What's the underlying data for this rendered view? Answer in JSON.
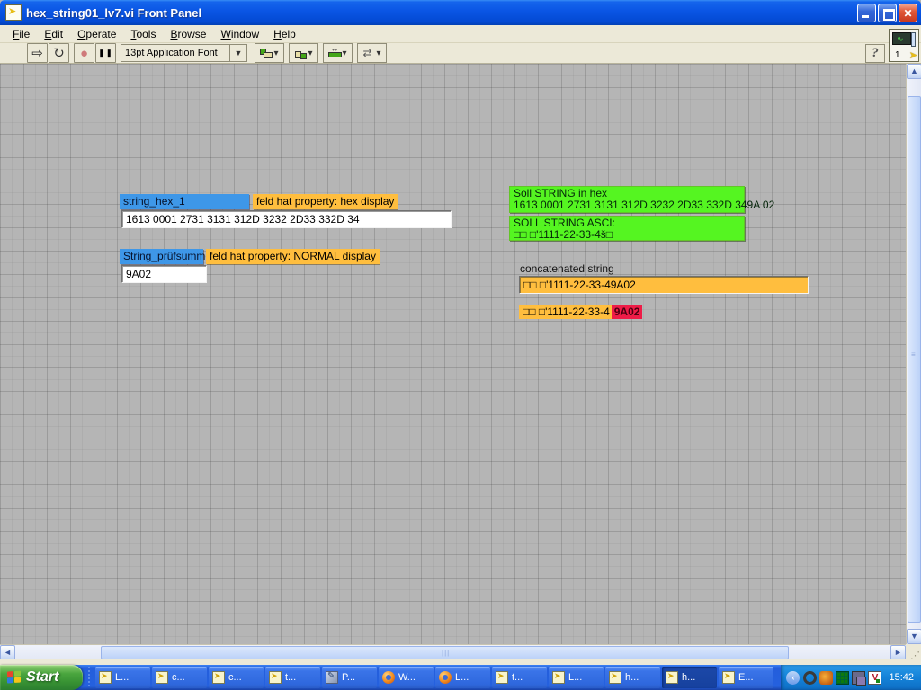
{
  "window": {
    "title": "hex_string01_lv7.vi Front Panel"
  },
  "menu": {
    "items": [
      "File",
      "Edit",
      "Operate",
      "Tools",
      "Browse",
      "Window",
      "Help"
    ]
  },
  "toolbar": {
    "font_selector": "13pt Application Font",
    "help_glyph": "?",
    "vi_number": "1"
  },
  "panel": {
    "hex_control": {
      "label": "string_hex_1",
      "note": "feld hat property: hex display",
      "value": "1613 0001 2731 3131 312D 3232 2D33 332D 34"
    },
    "checksum_control": {
      "label": "String_prüfsumme",
      "note": "feld hat property: NORMAL display",
      "value": "9A02"
    },
    "soll_hex": {
      "title": "Soll STRING in hex",
      "value": "1613 0001 2731 3131 312D 3232 2D33 332D 349A 02"
    },
    "soll_ascii": {
      "title": "SOLL STRING ASCI:",
      "value": "□□ □'1111-22-33-4š□"
    },
    "concatenated": {
      "label": "concatenated string",
      "value": "□□ □'1111-22-33-49A02"
    },
    "comparison": {
      "prefix": "□□ □'1111-22-33-4",
      "highlight": "9A02"
    }
  },
  "taskbar": {
    "start_label": "Start",
    "buttons": [
      {
        "icon": "labview",
        "label": "L..."
      },
      {
        "icon": "labview",
        "label": "c..."
      },
      {
        "icon": "labview",
        "label": "c..."
      },
      {
        "icon": "labview",
        "label": "t..."
      },
      {
        "icon": "paint",
        "label": "P..."
      },
      {
        "icon": "firefox",
        "label": "W..."
      },
      {
        "icon": "firefox",
        "label": "L..."
      },
      {
        "icon": "labview",
        "label": "t..."
      },
      {
        "icon": "labview",
        "label": "L..."
      },
      {
        "icon": "labview",
        "label": "h..."
      },
      {
        "icon": "labview",
        "label": "h...",
        "active": true
      },
      {
        "icon": "labview",
        "label": "E..."
      }
    ],
    "tray": {
      "collapse_glyph": "‹",
      "icons": [
        {
          "type": "clamp",
          "name": "tray-icon-clamp"
        },
        {
          "type": "fox",
          "name": "tray-icon-fox"
        },
        {
          "type": "matrix",
          "name": "tray-icon-led-matrix"
        },
        {
          "type": "displays",
          "name": "tray-icon-displays"
        },
        {
          "type": "vnc",
          "name": "tray-icon-vnc",
          "label": "V"
        }
      ],
      "time": "15:42"
    }
  },
  "colors": {
    "indicator_green": "#55f521",
    "indicator_orange": "#ffbe3e",
    "highlight_red": "#ee1c47",
    "label_selection_blue": "#3e97e8",
    "titlebar_blue": "#0a55e4",
    "taskbar_blue": "#245edc",
    "start_green": "#379133"
  }
}
